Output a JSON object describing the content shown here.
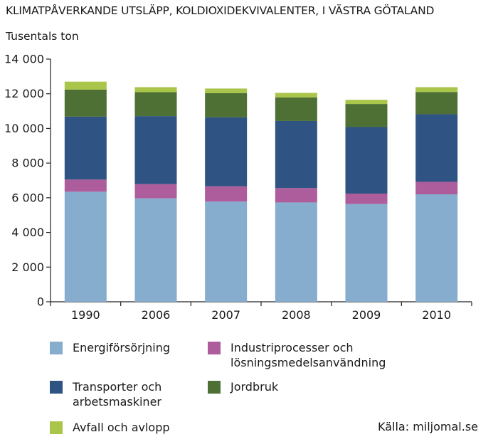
{
  "chart_data": {
    "type": "bar",
    "stacked": true,
    "title": "KLIMATPÅVERKANDE UTSLÄPP, KOLDIOXIDEKVIVALENTER, I VÄSTRA GÖTALAND",
    "ylabel": "Tusentals ton",
    "xlabel": "",
    "ylim": [
      0,
      14000
    ],
    "yticks": [
      0,
      2000,
      4000,
      6000,
      8000,
      10000,
      12000,
      14000
    ],
    "ytick_labels": [
      "0",
      "2 000",
      "4 000",
      "6 000",
      "8 000",
      "10 000",
      "12 000",
      "14 000"
    ],
    "categories": [
      "1990",
      "2006",
      "2007",
      "2008",
      "2009",
      "2010"
    ],
    "series": [
      {
        "name": "Energiförsörjning",
        "color": "#86acce",
        "values": [
          6350,
          5970,
          5780,
          5730,
          5640,
          6200
        ]
      },
      {
        "name": "Industriprocesser och\nlösningsmedelsanvändning",
        "color": "#ad5c9c",
        "values": [
          700,
          820,
          880,
          830,
          600,
          720
        ]
      },
      {
        "name": "Transporter och\narbetsmaskiner",
        "color": "#2f5483",
        "values": [
          3630,
          3920,
          3980,
          3870,
          3840,
          3900
        ]
      },
      {
        "name": "Jordbruk",
        "color": "#4e7035",
        "values": [
          1560,
          1380,
          1390,
          1360,
          1330,
          1280
        ]
      },
      {
        "name": "Avfall och avlopp",
        "color": "#a9c54a",
        "values": [
          460,
          290,
          270,
          260,
          240,
          280
        ]
      }
    ],
    "legend_position": "bottom",
    "grid": false
  },
  "source": "Källa: miljomal.se"
}
